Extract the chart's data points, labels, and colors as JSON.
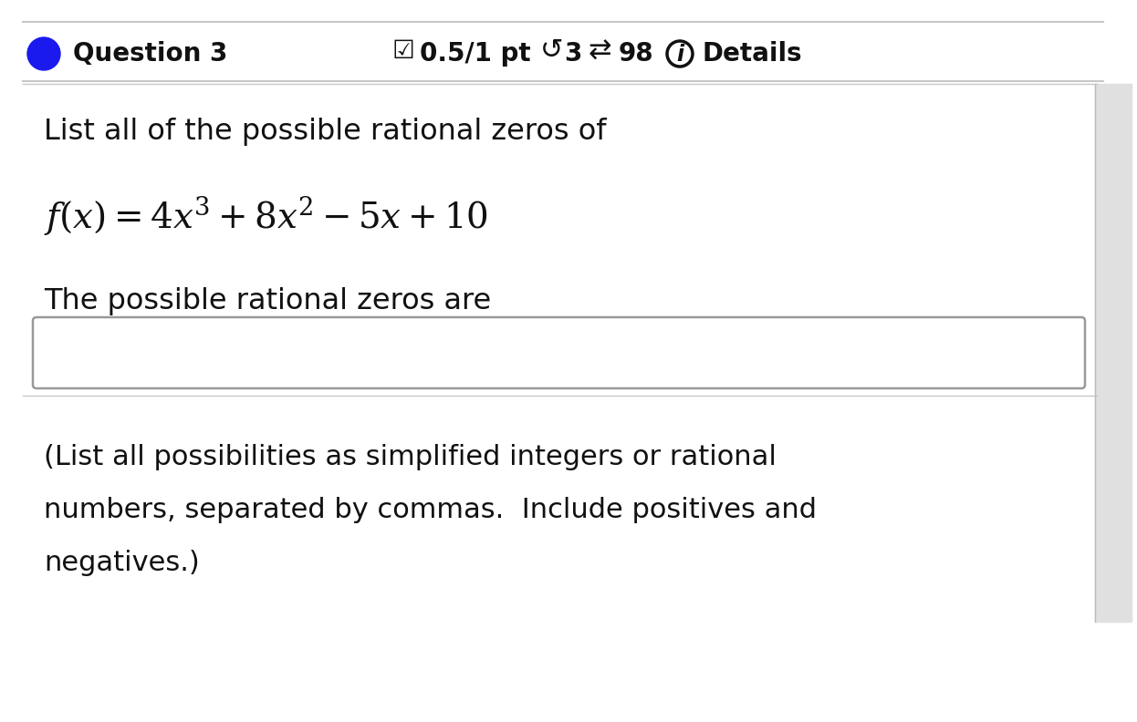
{
  "bg_color": "#ffffff",
  "header_line_color": "#c8c8c8",
  "divider_line_color": "#c8c8c8",
  "right_bar_color": "#cccccc",
  "circle_color": "#1a1aee",
  "question_label": "Question 3",
  "header_right_plain": "0.5/1 pt",
  "header_num1": "3",
  "header_num2": "98",
  "header_details": "Details",
  "line1": "List all of the possible rational zeros of",
  "line3": "The possible rational zeros are",
  "footnote_line1": "(List all possibilities as simplified integers or rational",
  "footnote_line2": "numbers, separated by commas.  Include positives and",
  "footnote_line3": "negatives.)",
  "input_box_color": "#ffffff",
  "input_box_border": "#999999",
  "font_color": "#111111",
  "header_fontsize": 20,
  "body_fontsize": 23,
  "formula_fontsize": 28,
  "footnote_fontsize": 22
}
